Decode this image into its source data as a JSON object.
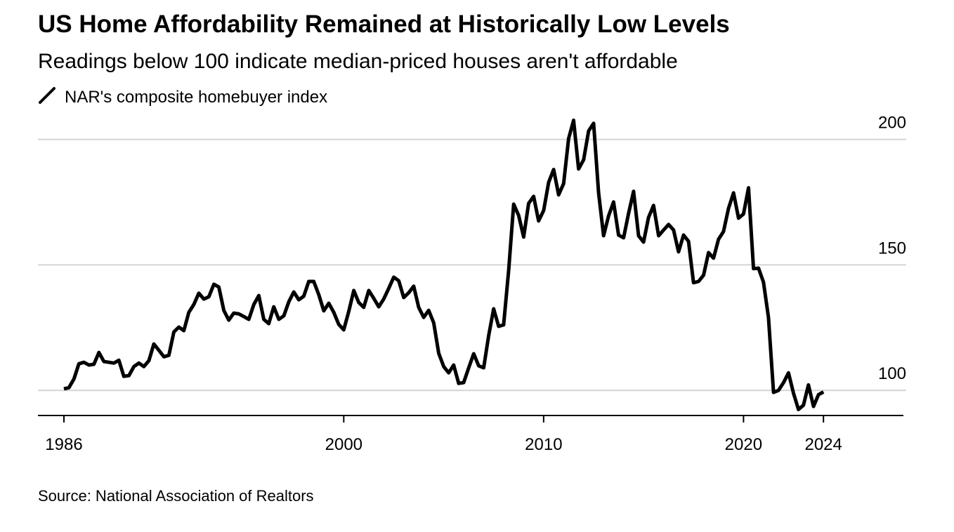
{
  "chart_data": {
    "type": "line",
    "title": "US Home Affordability Remained at Historically Low Levels",
    "subtitle": "Readings below 100 indicate median-priced houses aren't affordable",
    "source": "Source: National Association of Realtors",
    "x": [
      1986,
      1986.25,
      1986.5,
      1986.75,
      1987,
      1987.25,
      1987.5,
      1987.75,
      1988,
      1988.25,
      1988.5,
      1988.75,
      1989,
      1989.25,
      1989.5,
      1989.75,
      1990,
      1990.25,
      1990.5,
      1990.75,
      1991,
      1991.25,
      1991.5,
      1991.75,
      1992,
      1992.25,
      1992.5,
      1992.75,
      1993,
      1993.25,
      1993.5,
      1993.75,
      1994,
      1994.25,
      1994.5,
      1994.75,
      1995,
      1995.25,
      1995.5,
      1995.75,
      1996,
      1996.25,
      1996.5,
      1996.75,
      1997,
      1997.25,
      1997.5,
      1997.75,
      1998,
      1998.25,
      1998.5,
      1998.75,
      1999,
      1999.25,
      1999.5,
      1999.75,
      2000,
      2000.25,
      2000.5,
      2000.75,
      2001,
      2001.25,
      2001.5,
      2001.75,
      2002,
      2002.25,
      2002.5,
      2002.75,
      2003,
      2003.25,
      2003.5,
      2003.75,
      2004,
      2004.25,
      2004.5,
      2004.75,
      2005,
      2005.25,
      2005.5,
      2005.75,
      2006,
      2006.25,
      2006.5,
      2006.75,
      2007,
      2007.25,
      2007.5,
      2007.75,
      2008,
      2008.25,
      2008.5,
      2008.75,
      2009,
      2009.25,
      2009.5,
      2009.75,
      2010,
      2010.25,
      2010.5,
      2010.75,
      2011,
      2011.25,
      2011.5,
      2011.75,
      2012,
      2012.25,
      2012.5,
      2012.75,
      2013,
      2013.25,
      2013.5,
      2013.75,
      2014,
      2014.25,
      2014.5,
      2014.75,
      2015,
      2015.25,
      2015.5,
      2015.75,
      2016,
      2016.25,
      2016.5,
      2016.75,
      2017,
      2017.25,
      2017.5,
      2017.75,
      2018,
      2018.25,
      2018.5,
      2018.75,
      2019,
      2019.25,
      2019.5,
      2019.75,
      2020,
      2020.25,
      2020.5,
      2020.75,
      2021,
      2021.25,
      2021.5,
      2021.75,
      2022,
      2022.25,
      2022.5,
      2022.75,
      2023,
      2023.25,
      2023.5,
      2023.75,
      2024
    ],
    "series": [
      {
        "name": "NAR's composite homebuyer index",
        "color": "#000000",
        "values": [
          100.6,
          101.1,
          104.5,
          110.6,
          111.2,
          110.1,
          110.4,
          115.1,
          111.5,
          111.2,
          110.9,
          112.0,
          105.6,
          105.9,
          109.5,
          110.9,
          109.5,
          111.8,
          118.5,
          116.0,
          113.4,
          114.0,
          123.3,
          125.2,
          123.8,
          131.1,
          134.2,
          138.7,
          136.4,
          137.3,
          142.3,
          141.2,
          131.9,
          128.0,
          130.8,
          130.5,
          129.4,
          128.3,
          134.2,
          137.8,
          128.3,
          126.6,
          133.3,
          128.3,
          129.7,
          135.3,
          139.2,
          136.1,
          137.5,
          143.4,
          143.4,
          138.1,
          131.7,
          134.7,
          131.1,
          126.3,
          124.1,
          131.4,
          139.8,
          135.0,
          133.1,
          139.8,
          136.7,
          133.3,
          136.4,
          140.6,
          145.1,
          143.7,
          137.0,
          138.9,
          141.5,
          133.1,
          129.1,
          131.9,
          126.9,
          114.8,
          109.5,
          107.0,
          110.1,
          102.8,
          103.1,
          109.0,
          114.6,
          109.8,
          109.0,
          121.8,
          132.5,
          125.5,
          126.1,
          147.9,
          174.2,
          169.7,
          161.1,
          174.5,
          177.3,
          167.5,
          171.7,
          182.9,
          188.0,
          177.9,
          182.4,
          200.3,
          207.6,
          188.2,
          191.9,
          203.4,
          206.4,
          178.7,
          161.6,
          169.5,
          175.1,
          161.9,
          160.8,
          170.6,
          179.3,
          161.6,
          159.1,
          168.9,
          173.7,
          161.6,
          163.9,
          166.1,
          163.9,
          155.2,
          161.9,
          159.4,
          142.9,
          143.4,
          145.9,
          154.9,
          152.7,
          160.2,
          163.3,
          172.5,
          178.7,
          168.6,
          170.3,
          180.7,
          148.5,
          148.7,
          143.1,
          129.1,
          99.2,
          100.0,
          103.1,
          107.0,
          98.9,
          92.4,
          94.1,
          102.2,
          93.6,
          98.3,
          99.4
        ]
      }
    ],
    "xlim": [
      1984.7,
      2028
    ],
    "xticks": [
      1986,
      2000,
      2010,
      2020,
      2024
    ],
    "ylim": [
      90,
      208
    ],
    "yticks": [
      100,
      150,
      200
    ],
    "grid": true
  }
}
